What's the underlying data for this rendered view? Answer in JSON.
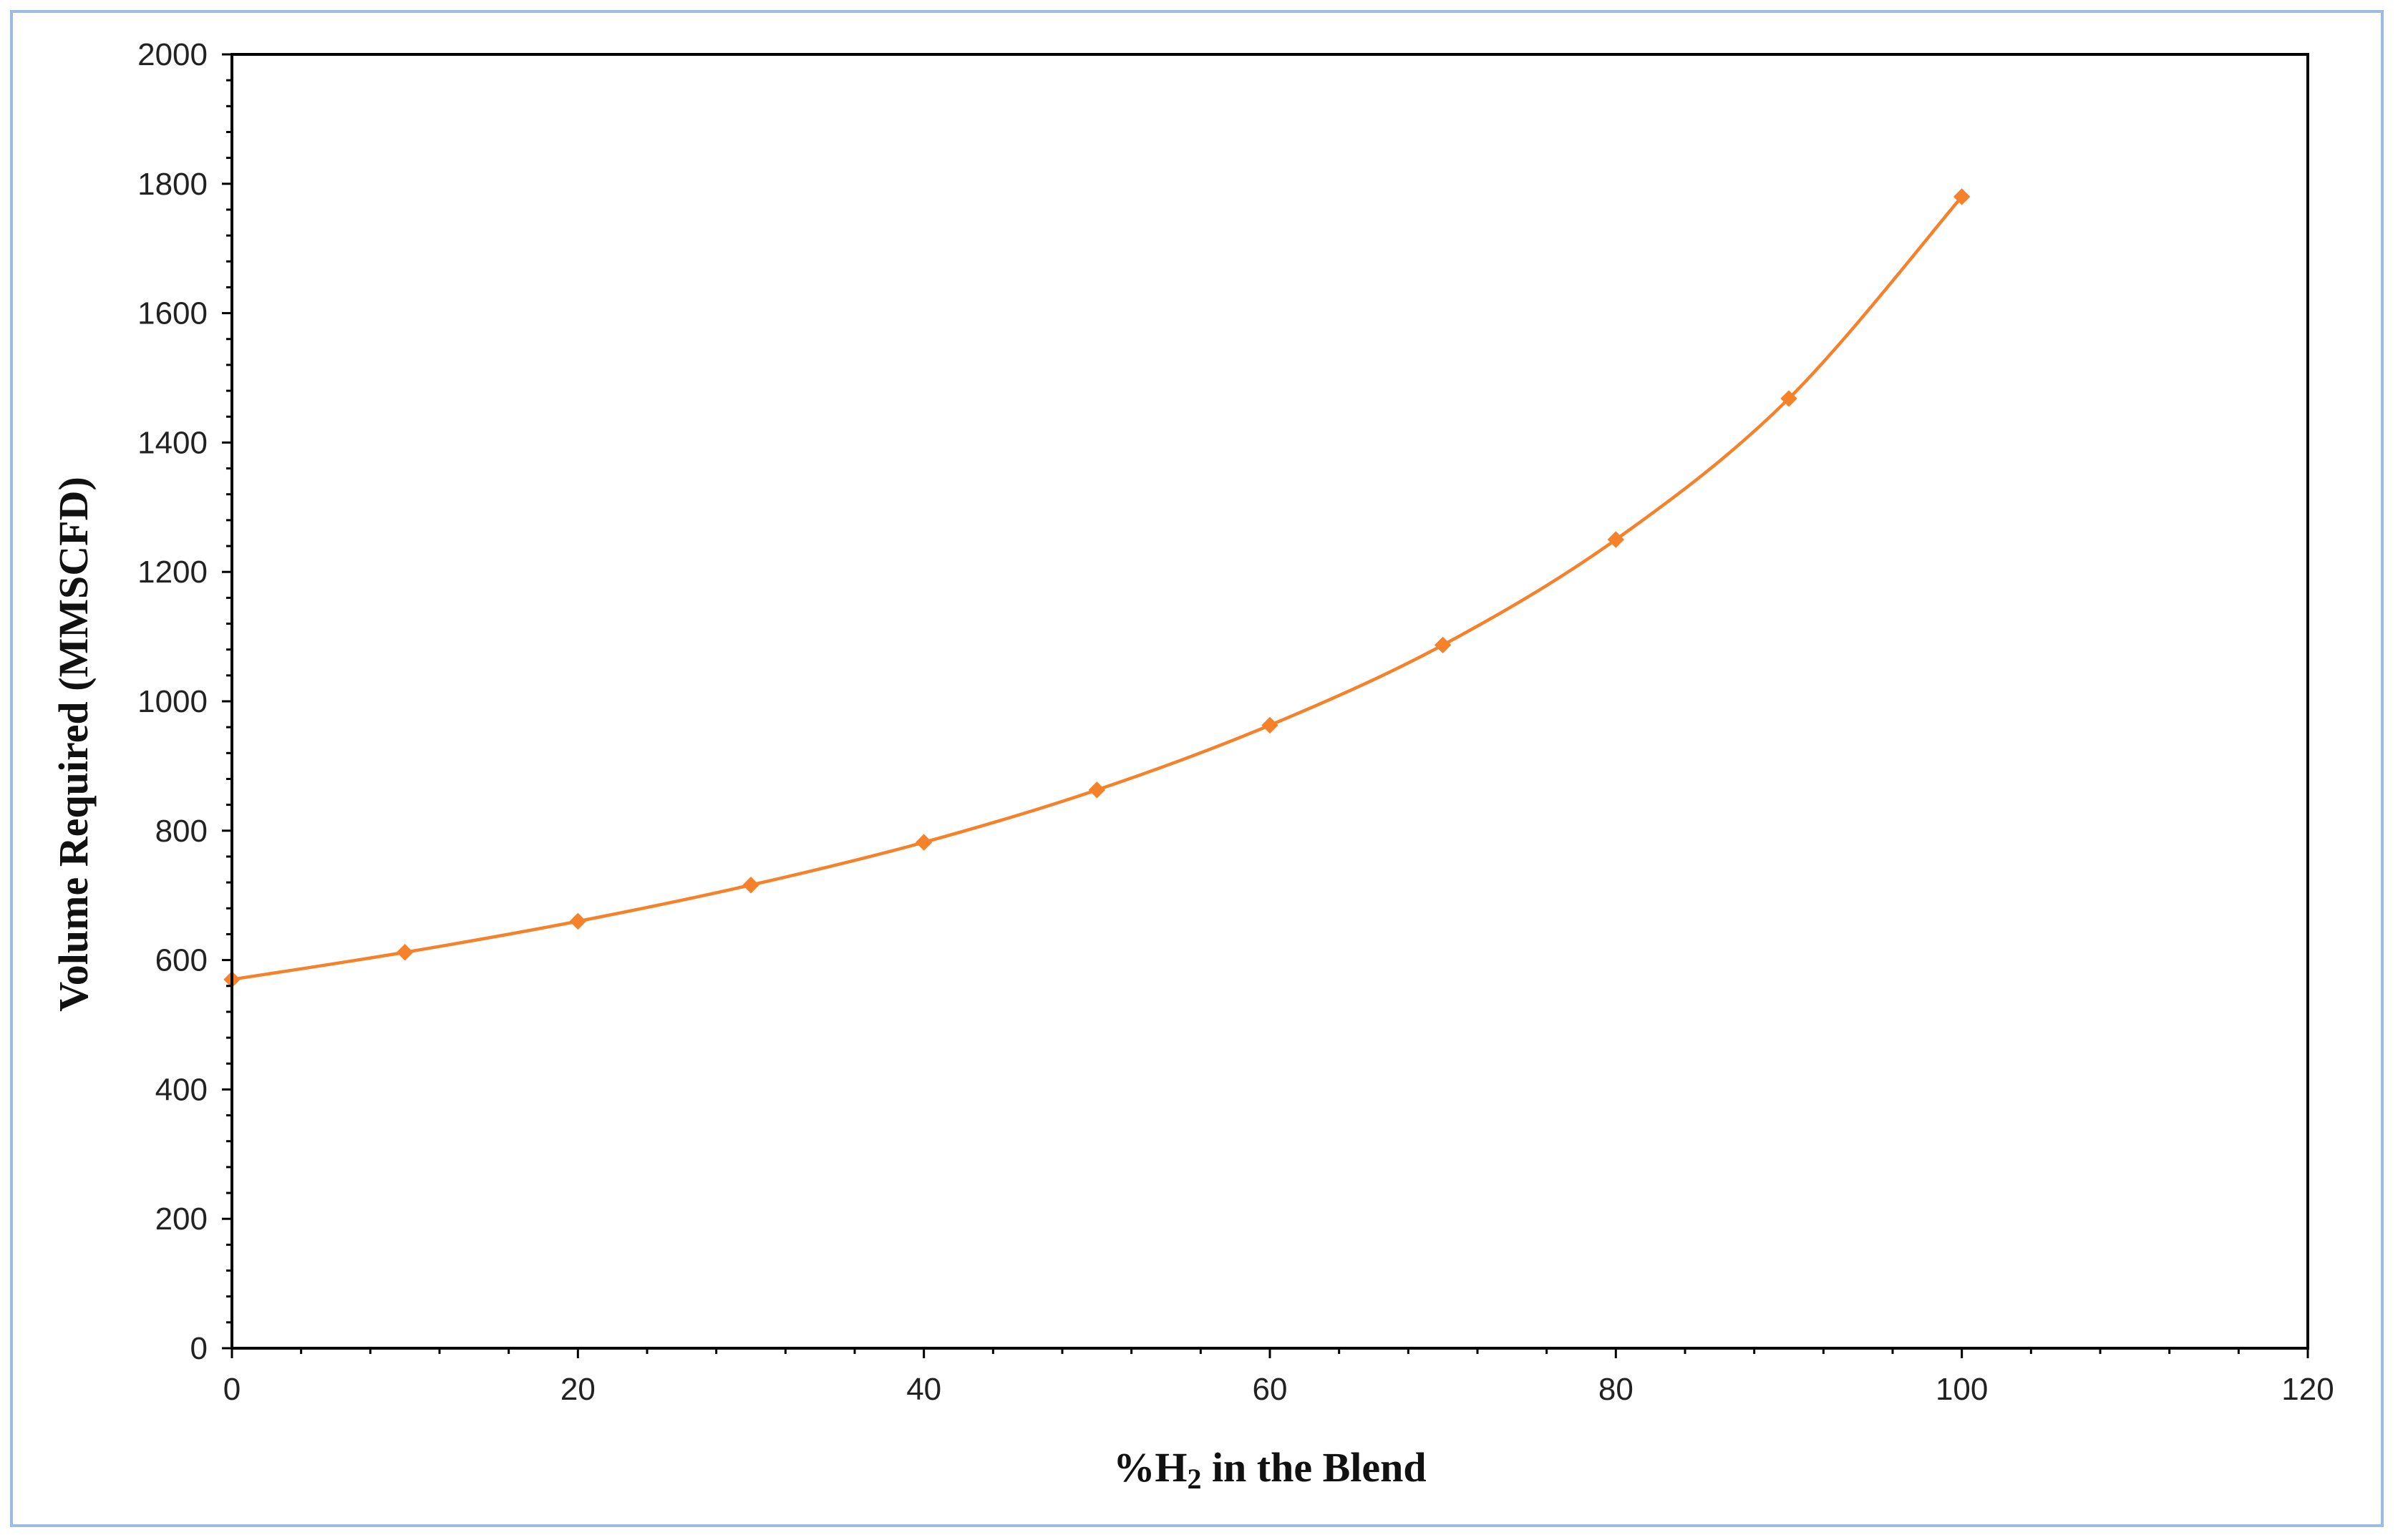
{
  "chart_data": {
    "type": "line",
    "title": "",
    "xlabel_prefix": "%H",
    "xlabel_subscript": "2",
    "xlabel_suffix": " in the Blend",
    "xlabel": "%H2 in the Blend",
    "ylabel": "Volume Required (MMSCFD)",
    "xlim": [
      0,
      120
    ],
    "ylim": [
      0,
      2000
    ],
    "x_ticks": [
      0,
      20,
      40,
      60,
      80,
      100,
      120
    ],
    "y_ticks": [
      0,
      200,
      400,
      600,
      800,
      1000,
      1200,
      1400,
      1600,
      1800,
      2000
    ],
    "grid": false,
    "legend": "none",
    "series": [
      {
        "color": "#f5822a",
        "marker": "diamond",
        "x": [
          0,
          10,
          20,
          30,
          40,
          50,
          60,
          70,
          80,
          90,
          100
        ],
        "y": [
          570,
          612,
          660,
          716,
          782,
          863,
          963,
          1087,
          1250,
          1468,
          1780
        ]
      }
    ]
  },
  "colors": {
    "frame_border": "#9dbde0",
    "axis": "#000000",
    "line": "#f5822a"
  }
}
